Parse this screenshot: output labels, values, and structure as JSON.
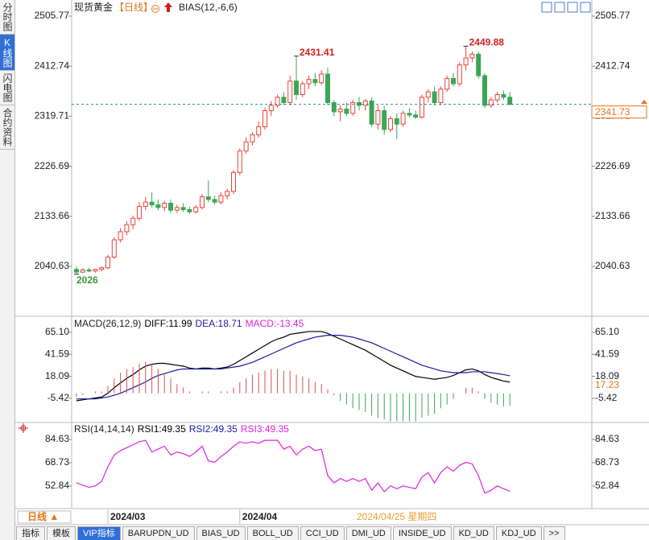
{
  "sidebar": [
    "分时图",
    "K线图",
    "闪电图",
    "合约资料"
  ],
  "chart_data": [
    {
      "type": "candlestick",
      "title": "现货黄金",
      "period": "【日线】",
      "indicator": "BIAS(12,-6,6)",
      "up_color": "#e8443a",
      "down_color": "#3aa655",
      "categories": [
        null,
        null,
        null,
        null,
        null,
        "2024/03",
        null,
        null,
        null,
        null,
        null,
        null,
        null,
        null,
        null,
        null,
        null,
        null,
        null,
        null,
        null,
        null,
        null,
        null,
        null,
        null,
        "2024/04",
        null,
        null,
        null,
        null,
        null,
        null,
        null,
        null,
        null,
        null,
        null,
        null,
        null,
        null,
        null,
        null,
        null,
        null,
        null,
        null,
        null,
        null,
        null,
        null,
        null,
        null,
        null,
        null,
        null,
        null,
        null,
        null,
        null,
        null,
        null,
        null,
        null,
        null,
        null,
        null,
        null,
        null,
        null
      ],
      "open": [
        2035,
        2030,
        2034,
        2032,
        2035,
        2038,
        2058,
        2090,
        2105,
        2118,
        2130,
        2152,
        2160,
        2155,
        2150,
        2158,
        2145,
        2150,
        2146,
        2142,
        2150,
        2170,
        2165,
        2160,
        2172,
        2180,
        2215,
        2255,
        2272,
        2285,
        2300,
        2330,
        2340,
        2355,
        2345,
        2385,
        2360,
        2380,
        2388,
        2382,
        2398,
        2345,
        2328,
        2333,
        2325,
        2345,
        2340,
        2348,
        2305,
        2330,
        2295,
        2315,
        2305,
        2325,
        2322,
        2318,
        2355,
        2365,
        2345,
        2370,
        2390,
        2380,
        2415,
        2428,
        2435,
        2395,
        2340,
        2350,
        2360,
        2355
      ],
      "high": [
        2040,
        2037,
        2038,
        2036,
        2040,
        2062,
        2095,
        2112,
        2125,
        2135,
        2160,
        2170,
        2178,
        2165,
        2162,
        2165,
        2155,
        2158,
        2152,
        2155,
        2175,
        2200,
        2172,
        2178,
        2185,
        2220,
        2260,
        2280,
        2290,
        2310,
        2335,
        2348,
        2360,
        2365,
        2395,
        2431.41,
        2385,
        2395,
        2400,
        2405,
        2410,
        2350,
        2340,
        2345,
        2350,
        2355,
        2352,
        2355,
        2340,
        2338,
        2320,
        2325,
        2330,
        2335,
        2330,
        2360,
        2370,
        2375,
        2375,
        2395,
        2400,
        2420,
        2449.88,
        2440,
        2440,
        2400,
        2355,
        2365,
        2368,
        2365
      ],
      "low": [
        2026,
        2028,
        2030,
        2029,
        2031,
        2035,
        2055,
        2085,
        2098,
        2110,
        2125,
        2145,
        2150,
        2145,
        2143,
        2140,
        2140,
        2142,
        2138,
        2139,
        2146,
        2160,
        2155,
        2156,
        2165,
        2175,
        2210,
        2250,
        2265,
        2280,
        2295,
        2320,
        2335,
        2340,
        2340,
        2350,
        2355,
        2370,
        2375,
        2378,
        2340,
        2320,
        2310,
        2320,
        2320,
        2330,
        2330,
        2300,
        2295,
        2285,
        2290,
        2277.18,
        2300,
        2318,
        2315,
        2315,
        2345,
        2340,
        2340,
        2365,
        2375,
        2375,
        2405,
        2420,
        2390,
        2335,
        2335,
        2345,
        2350,
        2340
      ],
      "close": [
        2030,
        2034,
        2032,
        2035,
        2038,
        2058,
        2090,
        2105,
        2118,
        2130,
        2152,
        2160,
        2155,
        2150,
        2158,
        2145,
        2150,
        2146,
        2142,
        2150,
        2170,
        2165,
        2160,
        2172,
        2180,
        2215,
        2255,
        2272,
        2285,
        2300,
        2330,
        2340,
        2355,
        2345,
        2385,
        2360,
        2380,
        2388,
        2382,
        2398,
        2345,
        2328,
        2333,
        2325,
        2345,
        2340,
        2348,
        2305,
        2330,
        2295,
        2315,
        2305,
        2325,
        2322,
        2318,
        2355,
        2365,
        2345,
        2370,
        2390,
        2380,
        2415,
        2428,
        2435,
        2395,
        2340,
        2350,
        2360,
        2355,
        2341.73
      ],
      "ylim": [
        1952.36,
        2523.72
      ],
      "yticks": [
        2505.77,
        2412.74,
        2319.71,
        2226.69,
        2133.66,
        2040.63
      ]
    },
    {
      "type": "macd",
      "title": "MACD(26,12,9)",
      "current_label": "17.23",
      "up_color": "#d9534f",
      "down_color": "#3aa655",
      "series": [
        {
          "label": "DIFF:11.99",
          "color": "#000000",
          "style": "line",
          "values": [
            -8,
            -7,
            -6,
            -5,
            -4,
            0,
            6,
            11,
            16,
            20,
            25,
            29,
            31,
            32,
            32,
            31,
            30,
            29,
            27,
            26,
            27,
            27,
            26,
            27,
            28,
            31,
            35,
            39,
            43,
            47,
            51,
            55,
            58,
            60,
            63,
            64,
            65,
            66,
            66,
            66,
            64,
            61,
            58,
            55,
            52,
            49,
            46,
            42,
            38,
            34,
            30,
            27,
            24,
            21,
            18,
            17,
            16,
            15,
            16,
            17,
            19,
            22,
            25,
            26,
            24,
            20,
            17,
            15,
            13,
            11.99
          ]
        },
        {
          "label": "DEA:18.71",
          "color": "#1a1aa0",
          "style": "line",
          "values": [
            -6,
            -6,
            -6,
            -6,
            -5,
            -4,
            -2,
            0,
            3,
            6,
            9,
            12,
            16,
            19,
            21,
            23,
            25,
            26,
            26,
            26,
            26,
            26,
            26,
            26,
            27,
            28,
            29,
            31,
            33,
            36,
            39,
            42,
            45,
            48,
            51,
            54,
            56,
            58,
            60,
            61,
            62,
            62,
            62,
            61,
            60,
            58,
            56,
            54,
            51,
            48,
            45,
            42,
            39,
            36,
            33,
            30,
            28,
            26,
            24,
            23,
            22,
            22,
            22,
            23,
            23,
            23,
            22,
            21,
            20,
            18.71
          ]
        },
        {
          "label": "MACD:-13.45",
          "color": "#e020e0",
          "style": "bar",
          "values": [
            -4,
            -2,
            0,
            2,
            2,
            8,
            16,
            22,
            26,
            28,
            32,
            34,
            30,
            26,
            22,
            16,
            10,
            6,
            2,
            0,
            2,
            2,
            0,
            2,
            2,
            6,
            12,
            16,
            20,
            22,
            24,
            26,
            26,
            24,
            24,
            20,
            18,
            16,
            12,
            10,
            4,
            -2,
            -8,
            -12,
            -16,
            -18,
            -20,
            -24,
            -26,
            -28,
            -30,
            -30,
            -30,
            -30,
            -30,
            -26,
            -24,
            -22,
            -16,
            -12,
            -6,
            0,
            6,
            6,
            2,
            -6,
            -10,
            -12,
            -14,
            -13.45
          ]
        }
      ],
      "ylim": [
        -31.22,
        78.0
      ],
      "yticks": [
        {
          "value": 65.1,
          "label": "65.10"
        },
        41.59,
        18.09,
        -5.42
      ]
    },
    {
      "type": "line",
      "title": "RSI(14,14,14)",
      "line_color": "#e020e0",
      "series": [
        {
          "label": "RSI1:49.35",
          "color": "#000000"
        },
        {
          "label": "RSI2:49.35",
          "color": "#1a1aa0"
        },
        {
          "label": "RSI3:49.35",
          "color": "#e020e0"
        }
      ],
      "values": [
        55,
        53.5,
        52,
        53,
        56,
        66,
        74,
        77,
        79,
        81,
        83,
        84,
        76,
        78,
        80,
        74,
        76,
        75,
        73,
        76,
        80,
        70,
        69,
        73,
        76,
        80,
        83,
        82,
        83,
        82,
        84,
        84,
        84,
        78,
        80,
        74,
        78,
        80,
        77,
        78,
        60,
        55,
        58,
        56,
        58,
        56,
        58,
        50,
        55,
        49,
        53,
        51,
        53,
        52,
        51,
        59,
        62,
        55,
        62,
        66,
        63,
        67,
        69,
        68,
        60,
        48,
        50,
        53,
        51,
        49.35
      ],
      "ylim": [
        39.69,
        93.4
      ],
      "yticks": [
        84.63,
        68.73,
        52.84
      ]
    }
  ],
  "date_bar": {
    "period": "日线 ▲",
    "cursor_date": "2024/04/25 星期四"
  },
  "tabs": [
    "指标",
    "模板",
    "VIP指标",
    "BARUPDN_UD",
    "BIAS_UD",
    "BOLL_UD",
    "CCI_UD",
    "DMI_UD",
    "INSIDE_UD",
    "KD_UD",
    "KDJ_UD",
    ">>"
  ]
}
